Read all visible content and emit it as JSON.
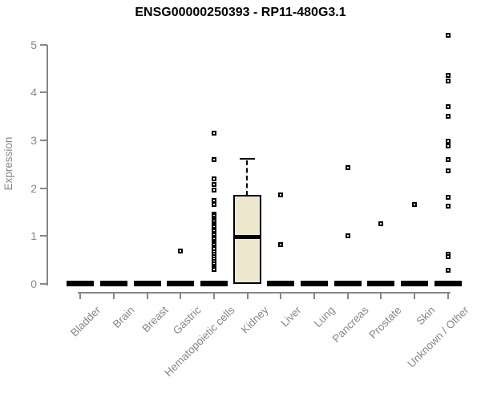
{
  "chart_data": {
    "type": "boxplot",
    "title": "ENSG00000250393 - RP11-480G3.1",
    "ylabel": "Expression",
    "xlabel": "",
    "ylim": [
      0,
      5
    ],
    "yticks": [
      0,
      1,
      2,
      3,
      4,
      5
    ],
    "grid": false,
    "legend": false,
    "axis_color": "#878787",
    "label_color": "#878787",
    "title_color": "#000000",
    "box_fill_color": "#ece7cd",
    "box_line_color": "#000000",
    "outlier_symbol": "open-square",
    "categories": [
      "Bladder",
      "Brain",
      "Breast",
      "Gastric",
      "Hematopoietic cells",
      "Kidney",
      "Liver",
      "Lung",
      "Pancreas",
      "Prostate",
      "Skin",
      "Unknown / Other"
    ],
    "boxes": [
      {
        "category": "Bladder",
        "q1": 0,
        "median": 0,
        "q3": 0,
        "whisker_low": 0,
        "whisker_high": 0,
        "outliers": []
      },
      {
        "category": "Brain",
        "q1": 0,
        "median": 0,
        "q3": 0,
        "whisker_low": 0,
        "whisker_high": 0,
        "outliers": []
      },
      {
        "category": "Breast",
        "q1": 0,
        "median": 0,
        "q3": 0,
        "whisker_low": 0,
        "whisker_high": 0,
        "outliers": []
      },
      {
        "category": "Gastric",
        "q1": 0,
        "median": 0,
        "q3": 0,
        "whisker_low": 0,
        "whisker_high": 0,
        "outliers": [
          0.69
        ]
      },
      {
        "category": "Hematopoietic cells",
        "q1": 0,
        "median": 0,
        "q3": 0,
        "whisker_low": 0,
        "whisker_high": 0,
        "outliers": [
          3.15,
          2.6,
          2.2,
          2.07,
          1.96,
          1.74,
          1.66,
          1.46,
          1.42,
          1.38,
          1.34,
          1.3,
          1.26,
          1.22,
          1.18,
          1.14,
          1.1,
          1.06,
          1.02,
          0.97,
          0.93,
          0.89,
          0.85,
          0.81,
          0.77,
          0.73,
          0.66,
          0.62,
          0.57,
          0.52,
          0.46,
          0.41,
          0.37,
          0.33,
          0.29
        ]
      },
      {
        "category": "Kidney",
        "q1": 0,
        "median": 0.98,
        "q3": 1.85,
        "whisker_low": 0,
        "whisker_high": 2.62,
        "outliers": []
      },
      {
        "category": "Liver",
        "q1": 0,
        "median": 0,
        "q3": 0,
        "whisker_low": 0,
        "whisker_high": 0,
        "outliers": [
          1.86,
          0.81
        ]
      },
      {
        "category": "Lung",
        "q1": 0,
        "median": 0,
        "q3": 0,
        "whisker_low": 0,
        "whisker_high": 0,
        "outliers": []
      },
      {
        "category": "Pancreas",
        "q1": 0,
        "median": 0,
        "q3": 0,
        "whisker_low": 0,
        "whisker_high": 0,
        "outliers": [
          2.43,
          1.01
        ]
      },
      {
        "category": "Prostate",
        "q1": 0,
        "median": 0,
        "q3": 0,
        "whisker_low": 0,
        "whisker_high": 0,
        "outliers": [
          1.26
        ]
      },
      {
        "category": "Skin",
        "q1": 0,
        "median": 0,
        "q3": 0,
        "whisker_low": 0,
        "whisker_high": 0,
        "outliers": [
          1.66
        ]
      },
      {
        "category": "Unknown / Other",
        "q1": 0,
        "median": 0,
        "q3": 0,
        "whisker_low": 0,
        "whisker_high": 0,
        "outliers": [
          5.2,
          4.35,
          4.24,
          3.71,
          3.51,
          2.99,
          2.88,
          2.6,
          2.36,
          1.81,
          1.63,
          0.61,
          0.56,
          0.28
        ]
      }
    ]
  }
}
